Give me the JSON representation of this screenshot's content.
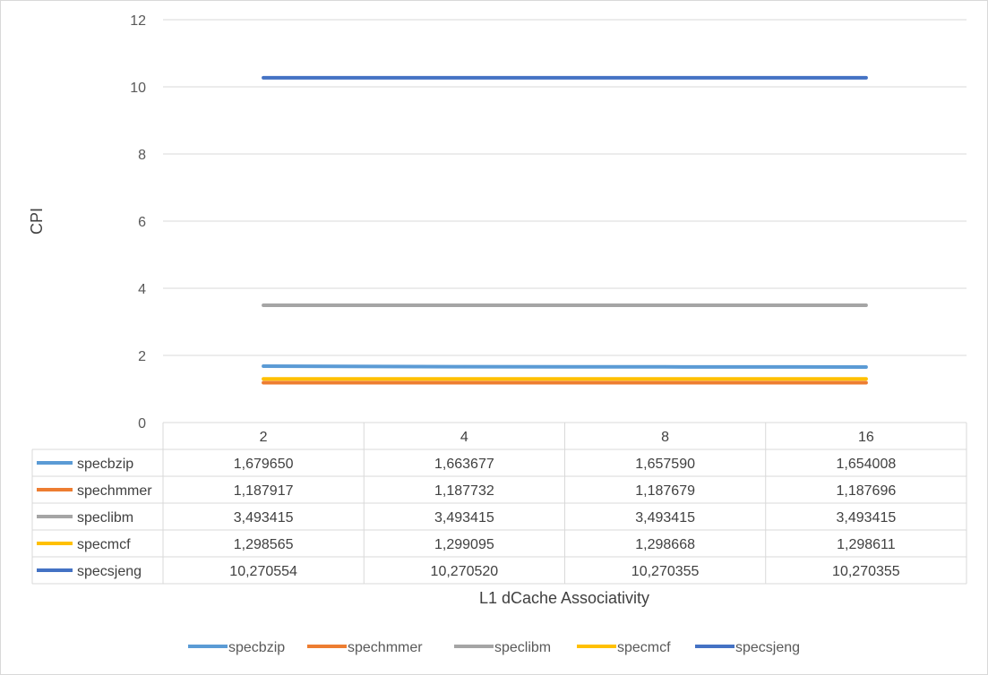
{
  "chart_data": {
    "type": "line",
    "title": "",
    "xlabel": "L1 dCache Associativity",
    "ylabel": "CPI",
    "ylim": [
      0,
      12
    ],
    "yticks": [
      0,
      2,
      4,
      6,
      8,
      10,
      12
    ],
    "categories": [
      "2",
      "4",
      "8",
      "16"
    ],
    "grid": true,
    "legend_position": "bottom",
    "series": [
      {
        "name": "specbzip",
        "color": "#5B9BD5",
        "values": [
          1.67965,
          1.663677,
          1.65759,
          1.654008
        ],
        "labels": [
          "1,679650",
          "1,663677",
          "1,657590",
          "1,654008"
        ]
      },
      {
        "name": "spechmmer",
        "color": "#ED7D31",
        "values": [
          1.187917,
          1.187732,
          1.187679,
          1.187696
        ],
        "labels": [
          "1,187917",
          "1,187732",
          "1,187679",
          "1,187696"
        ]
      },
      {
        "name": "speclibm",
        "color": "#A5A5A5",
        "values": [
          3.493415,
          3.493415,
          3.493415,
          3.493415
        ],
        "labels": [
          "3,493415",
          "3,493415",
          "3,493415",
          "3,493415"
        ]
      },
      {
        "name": "specmcf",
        "color": "#FFC000",
        "values": [
          1.298565,
          1.299095,
          1.298668,
          1.298611
        ],
        "labels": [
          "1,298565",
          "1,299095",
          "1,298668",
          "1,298611"
        ]
      },
      {
        "name": "specsjeng",
        "color": "#4472C4",
        "values": [
          10.270554,
          10.27052,
          10.270355,
          10.270355
        ],
        "labels": [
          "10,270554",
          "10,270520",
          "10,270355",
          "10,270355"
        ]
      }
    ]
  }
}
